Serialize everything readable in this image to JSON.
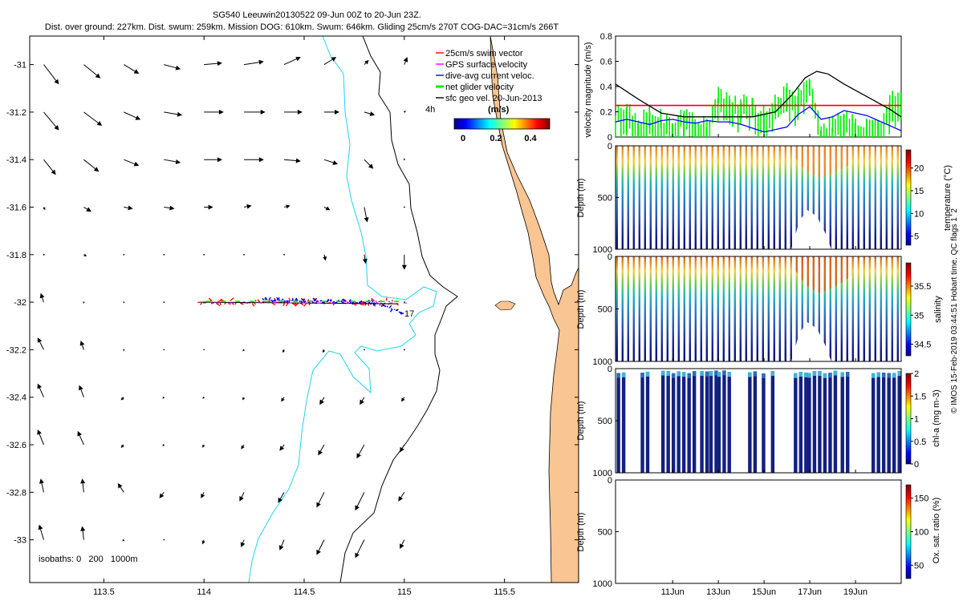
{
  "header": {
    "title": "SG540 Leeuwin20130522 09-Jun 00Z to 20-Jun 23Z.",
    "stats": "Dist. over ground: 227km. Dist. swum: 259km. Mission DOG: 610km. Swum: 646km. Gliding 25cm/s 270T COG-DAC=31cm/s 266T"
  },
  "footer_credit": "© IMOS 15-Feb-2019 03:44:51 Hobart time. QC flags 1  2",
  "colors": {
    "land": "#f9c592",
    "isobath": "#22d3ee",
    "swim": "#ff0000",
    "gps": "#ff00ff",
    "dac": "#0000ff",
    "net": "#00ee00",
    "sfc": "#000000"
  },
  "chart_data": [
    {
      "id": "map",
      "type": "quiver-map",
      "xlim": [
        113.13,
        115.87
      ],
      "ylim": [
        -33.18,
        -30.88
      ],
      "xticks": [
        113.5,
        114,
        114.5,
        115,
        115.5
      ],
      "xtick_labels": [
        "113.5",
        "114",
        "114.5",
        "115",
        "115.5"
      ],
      "yticks": [
        -31,
        -31.2,
        -31.4,
        -31.6,
        -31.8,
        -32,
        -32.2,
        -32.4,
        -32.6,
        -32.8,
        -33
      ],
      "ytick_labels": [
        "-31",
        "-31.2",
        "-31.4",
        "-31.6",
        "-31.8",
        "-32",
        "-32.2",
        "-32.4",
        "-32.6",
        "-32.8",
        "-33"
      ],
      "legend": [
        {
          "label": "25cm/s swim vector",
          "color": "#ff0000"
        },
        {
          "label": "GPS surface velocity",
          "color": "#ff00ff"
        },
        {
          "label": "dive-avg current veloc.",
          "color": "#0000ff"
        },
        {
          "label": "net glider velocity",
          "color": "#00ee00"
        },
        {
          "label": "sfc geo vel. 20-Jun-2013",
          "color": "#000000"
        }
      ],
      "colorbar": {
        "title": "(m/s)",
        "label_4h": "4h",
        "ticks": [
          0,
          0.2,
          0.4
        ],
        "tick_labels": [
          "0",
          "0.2",
          "0.4"
        ],
        "range": [
          0,
          0.5
        ]
      },
      "isobath_note": "isobaths: 0   200   1000m",
      "annotation_end": "17",
      "glider_track": {
        "lat": -32.0,
        "lon_start": 113.98,
        "lon_end": 114.97
      },
      "vector_grid": {
        "lons": [
          113.2,
          113.4,
          113.6,
          113.8,
          114.0,
          114.2,
          114.4,
          114.6,
          114.8,
          115.0
        ],
        "lats": [
          -31.0,
          -31.2,
          -31.4,
          -31.6,
          -31.8,
          -32.0,
          -32.2,
          -32.4,
          -32.6,
          -32.8,
          -33.0
        ],
        "v": [
          [
            [
              0.1,
              -0.13
            ],
            [
              0.11,
              -0.09
            ],
            [
              0.1,
              -0.06
            ],
            [
              0.11,
              -0.03
            ],
            [
              0.12,
              0.01
            ],
            [
              0.13,
              0.02
            ],
            [
              0.11,
              0.05
            ],
            [
              0.08,
              0.05
            ],
            [
              0.03,
              0.03
            ],
            [
              0.02,
              0.05
            ]
          ],
          [
            [
              0.1,
              -0.12
            ],
            [
              0.12,
              -0.09
            ],
            [
              0.11,
              -0.05
            ],
            [
              0.12,
              -0.02
            ],
            [
              0.13,
              0.0
            ],
            [
              0.14,
              0.0
            ],
            [
              0.12,
              0.0
            ],
            [
              0.1,
              0.0
            ],
            [
              0.07,
              -0.02
            ],
            [
              0.01,
              0.01
            ]
          ],
          [
            [
              0.08,
              -0.1
            ],
            [
              0.1,
              -0.08
            ],
            [
              0.1,
              -0.04
            ],
            [
              0.11,
              -0.02
            ],
            [
              0.12,
              0.0
            ],
            [
              0.13,
              0.0
            ],
            [
              0.11,
              -0.01
            ],
            [
              0.09,
              -0.03
            ],
            [
              0.06,
              -0.06
            ],
            [
              0.0,
              0.01
            ]
          ],
          [
            [
              0.01,
              -0.02
            ],
            [
              0.05,
              -0.03
            ],
            [
              0.06,
              -0.01
            ],
            [
              0.07,
              -0.01
            ],
            [
              0.06,
              0.0
            ],
            [
              0.05,
              0.01
            ],
            [
              0.04,
              0.01
            ],
            [
              0.04,
              -0.02
            ],
            [
              0.02,
              -0.1
            ],
            [
              0.0,
              0.0
            ]
          ],
          [
            [
              0.01,
              0.0
            ],
            [
              0.02,
              -0.01
            ],
            [
              0.0,
              0.0
            ],
            [
              0.0,
              0.0
            ],
            [
              0.0,
              0.0
            ],
            [
              0.0,
              0.0
            ],
            [
              0.0,
              0.0
            ],
            [
              0.01,
              -0.04
            ],
            [
              0.01,
              -0.06
            ],
            [
              0.0,
              -0.1
            ]
          ],
          [
            [
              -0.02,
              0.06
            ],
            [
              0.0,
              -0.01
            ],
            [
              0.0,
              0.0
            ],
            [
              0.0,
              0.0
            ],
            [
              0.0,
              0.0
            ],
            [
              0.0,
              0.0
            ],
            [
              0.0,
              0.0
            ],
            [
              0.0,
              0.0
            ],
            [
              0.0,
              0.0
            ],
            [
              0.0,
              0.0
            ]
          ],
          [
            [
              -0.04,
              0.08
            ],
            [
              -0.02,
              0.06
            ],
            [
              0.0,
              -0.01
            ],
            [
              0.0,
              0.0
            ],
            [
              0.0,
              0.0
            ],
            [
              -0.01,
              -0.01
            ],
            [
              -0.01,
              -0.02
            ],
            [
              -0.01,
              -0.02
            ],
            [
              0.0,
              0.0
            ],
            [
              0.0,
              0.0
            ]
          ],
          [
            [
              -0.04,
              0.09
            ],
            [
              -0.03,
              0.08
            ],
            [
              -0.02,
              -0.02
            ],
            [
              -0.01,
              -0.01
            ],
            [
              -0.01,
              -0.01
            ],
            [
              -0.01,
              -0.02
            ],
            [
              -0.02,
              -0.03
            ],
            [
              -0.03,
              -0.05
            ],
            [
              -0.03,
              -0.05
            ],
            [
              -0.02,
              -0.03
            ]
          ],
          [
            [
              -0.04,
              0.1
            ],
            [
              -0.04,
              0.09
            ],
            [
              -0.02,
              -0.02
            ],
            [
              -0.01,
              -0.01
            ],
            [
              -0.01,
              -0.02
            ],
            [
              -0.02,
              -0.03
            ],
            [
              -0.03,
              -0.04
            ],
            [
              -0.04,
              -0.07
            ],
            [
              -0.05,
              -0.09
            ],
            [
              -0.03,
              -0.05
            ]
          ],
          [
            [
              -0.02,
              0.09
            ],
            [
              -0.01,
              0.09
            ],
            [
              -0.04,
              0.06
            ],
            [
              -0.03,
              -0.04
            ],
            [
              -0.02,
              -0.04
            ],
            [
              -0.03,
              -0.06
            ],
            [
              -0.04,
              -0.07
            ],
            [
              -0.05,
              -0.1
            ],
            [
              -0.06,
              -0.12
            ],
            [
              -0.04,
              -0.06
            ]
          ],
          [
            [
              -0.03,
              0.1
            ],
            [
              -0.01,
              0.09
            ],
            [
              -0.01,
              -0.01
            ],
            [
              0.0,
              0.0
            ],
            [
              -0.01,
              -0.03
            ],
            [
              -0.02,
              -0.05
            ],
            [
              -0.03,
              -0.07
            ],
            [
              -0.05,
              -0.1
            ],
            [
              -0.06,
              -0.12
            ],
            [
              -0.03,
              -0.06
            ]
          ]
        ]
      }
    },
    {
      "id": "velocity",
      "type": "line",
      "ylabel": "velocity magnitude (m/s)",
      "ylim": [
        0,
        0.8
      ],
      "yticks": [
        0,
        0.2,
        0.4,
        0.6,
        0.8
      ],
      "ytick_labels": [
        "0",
        "0.2",
        "0.4",
        "0.6",
        "0.8"
      ],
      "xlim": [
        8.5,
        21.0
      ],
      "series": [
        {
          "name": "swim speed 25cm/s",
          "color": "#ff0000",
          "x": [
            8.5,
            21.0
          ],
          "y": [
            0.25,
            0.25
          ]
        },
        {
          "name": "sfc geo velocity",
          "color": "#000000",
          "x": [
            8.5,
            9.5,
            10.5,
            11.5,
            12.5,
            13.5,
            14.5,
            15.5,
            16.2,
            16.8,
            17.3,
            17.8,
            18.5,
            19.5,
            20.5,
            21.0
          ],
          "y": [
            0.42,
            0.3,
            0.19,
            0.16,
            0.16,
            0.16,
            0.16,
            0.2,
            0.33,
            0.47,
            0.52,
            0.5,
            0.42,
            0.32,
            0.22,
            0.16
          ]
        },
        {
          "name": "dive-avg current",
          "color": "#0000ff",
          "x": [
            8.5,
            9.0,
            9.5,
            10.0,
            10.5,
            11.0,
            11.5,
            12.0,
            12.5,
            13.0,
            13.5,
            14.0,
            14.5,
            15.0,
            15.5,
            16.0,
            16.5,
            17.0,
            17.5,
            18.0,
            18.5,
            19.0,
            19.5,
            20.0,
            20.5,
            21.0
          ],
          "y": [
            0.12,
            0.14,
            0.12,
            0.1,
            0.13,
            0.14,
            0.12,
            0.11,
            0.13,
            0.12,
            0.12,
            0.1,
            0.07,
            0.04,
            0.06,
            0.08,
            0.18,
            0.24,
            0.14,
            0.16,
            0.21,
            0.19,
            0.17,
            0.13,
            0.09,
            0.05
          ]
        },
        {
          "name": "net glider velocity",
          "color": "#00ee00",
          "x": [
            8.5,
            9.0,
            9.5,
            10.0,
            10.5,
            11.0,
            11.5,
            12.0,
            12.5,
            13.0,
            13.5,
            14.0,
            14.5,
            15.0,
            15.5,
            16.0,
            16.5,
            17.0,
            17.5,
            18.0,
            18.5,
            19.0,
            19.5,
            20.0,
            20.5,
            21.0
          ],
          "y": [
            0.22,
            0.26,
            0.14,
            0.2,
            0.18,
            0.1,
            0.2,
            0.15,
            0.12,
            0.35,
            0.32,
            0.3,
            0.26,
            0.2,
            0.3,
            0.38,
            0.36,
            0.44,
            0.08,
            0.12,
            0.22,
            0.1,
            0.12,
            0.1,
            0.3,
            0.38
          ]
        }
      ]
    },
    {
      "id": "temperature",
      "type": "scatter-section",
      "ylabel": "Depth (m)",
      "ylim": [
        0,
        1000
      ],
      "yticks": [
        0,
        500,
        1000
      ],
      "ytick_labels": [
        "0",
        "500",
        "1000"
      ],
      "colorbar": {
        "label": "temperature (°C)",
        "range": [
          3,
          24
        ],
        "ticks": [
          5,
          10,
          15,
          20
        ],
        "tick_labels": [
          "5",
          "10",
          "15",
          "20"
        ]
      }
    },
    {
      "id": "salinity",
      "type": "scatter-section",
      "ylabel": "Depth (m)",
      "ylim": [
        0,
        1000
      ],
      "yticks": [
        0,
        500,
        1000
      ],
      "ytick_labels": [
        "0",
        "500",
        "1000"
      ],
      "colorbar": {
        "label": "salinity",
        "range": [
          34.3,
          35.9
        ],
        "ticks": [
          34.5,
          35,
          35.5
        ],
        "tick_labels": [
          "34.5",
          "35",
          "35.5"
        ]
      }
    },
    {
      "id": "chla",
      "type": "scatter-section",
      "ylabel": "Depth (m)",
      "ylim": [
        0,
        1000
      ],
      "yticks": [
        0,
        500,
        1000
      ],
      "ytick_labels": [
        "0",
        "500",
        "1000"
      ],
      "colorbar": {
        "label": "chl-a (mg m-3)",
        "range": [
          0,
          2
        ],
        "ticks": [
          0,
          0.5,
          1,
          1.5,
          2
        ],
        "tick_labels": [
          "0",
          "0.5",
          "1",
          "1.5",
          "2"
        ]
      }
    },
    {
      "id": "oxygen",
      "type": "scatter-section",
      "ylabel": "Depth (m)",
      "ylim": [
        0,
        1000
      ],
      "yticks": [
        0,
        500,
        1000
      ],
      "ytick_labels": [
        "0",
        "500",
        "1000"
      ],
      "xlim": [
        8.5,
        21.0
      ],
      "xticks": [
        11,
        13,
        15,
        17,
        19
      ],
      "xtick_labels": [
        "11Jun",
        "13Jun",
        "15Jun",
        "17Jun",
        "19Jun"
      ],
      "colorbar": {
        "label": "Ox. sat. ratio (%)",
        "range": [
          30,
          170
        ],
        "ticks": [
          50,
          100,
          150
        ],
        "tick_labels": [
          "50",
          "100",
          "150"
        ]
      }
    }
  ]
}
